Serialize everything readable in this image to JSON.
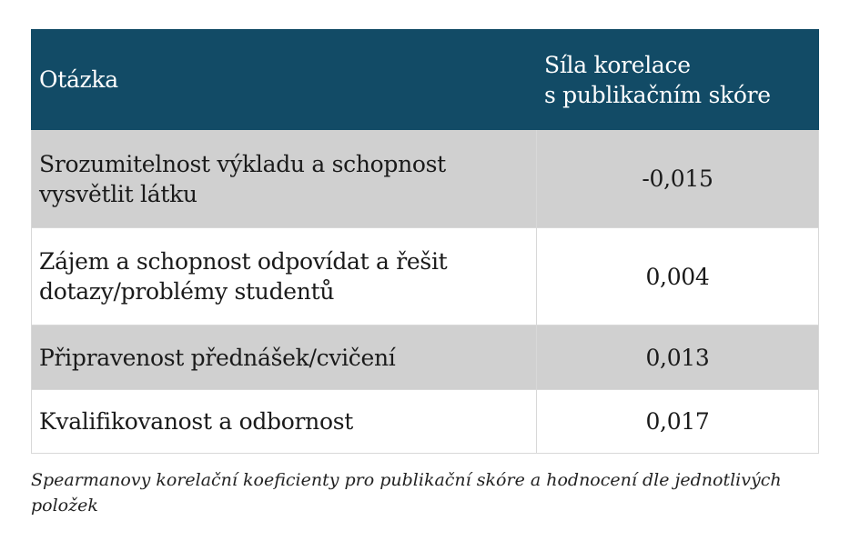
{
  "table": {
    "headers": [
      "Otázka",
      "Síla korelace\ns publikačním skóre"
    ],
    "header_line1": "Síla korelace",
    "header_line2": "s publikačním skóre",
    "rows": [
      {
        "question": "Srozumitelnost výkladu a schopnost vysvětlit látku",
        "value": "-0,015"
      },
      {
        "question": "Zájem a schopnost odpovídat a řešit dotazy/problémy studentů",
        "value": "0,004"
      },
      {
        "question": "Připravenost přednášek/cvičení",
        "value": "0,013"
      },
      {
        "question": "Kvalifikovanost a odbornost",
        "value": "0,017"
      }
    ]
  },
  "caption": "Spearmanovy korelační koeficienty pro publikační skóre a hodnocení dle jednotlivých položek",
  "colors": {
    "header_bg": "#124b66",
    "stripe": "#d0d0d0"
  }
}
